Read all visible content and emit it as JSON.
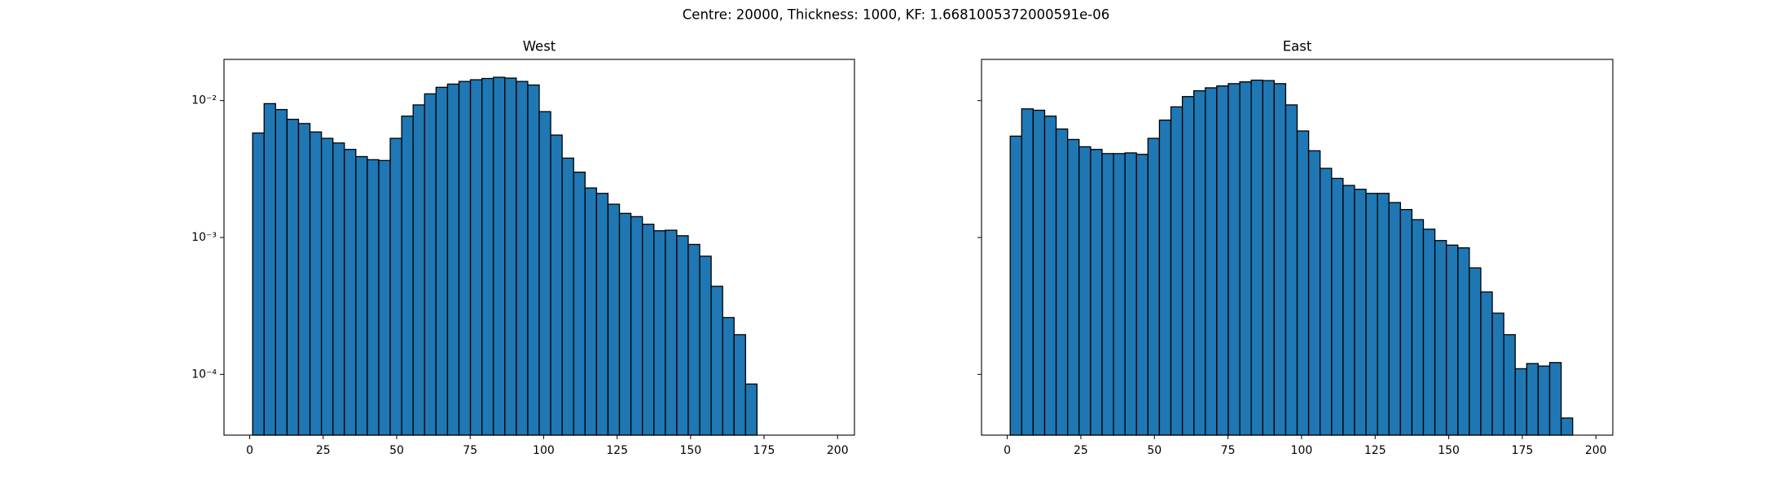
{
  "title": "Centre: 20000, Thickness: 1000, KF: 1.6681005372000591e-06",
  "chart_data": [
    {
      "type": "histogram",
      "title": "West",
      "color": "#1f77b4",
      "edgecolor": "#000000",
      "log_y": true,
      "bins": [
        1,
        4.9,
        8.8,
        12.7,
        16.6,
        20.5,
        24.4,
        28.3,
        32.2,
        36.1,
        40,
        43.9,
        47.8,
        51.7,
        55.6,
        59.5,
        63.4,
        67.3,
        71.2,
        75.1,
        79,
        82.9,
        86.8,
        90.7,
        94.6,
        98.5,
        102.4,
        106.3,
        110.2,
        114.1,
        118,
        121.9,
        125.8,
        129.7,
        133.6,
        137.5,
        141.4,
        145.3,
        149.2,
        153.1,
        157,
        160.9,
        164.8,
        168.7,
        172.6,
        176.5,
        180.4,
        184.3,
        188.2,
        192.1,
        196
      ],
      "counts": [
        0.0058,
        0.0095,
        0.0086,
        0.0073,
        0.0068,
        0.0059,
        0.0053,
        0.0049,
        0.0044,
        0.0039,
        0.0037,
        0.00365,
        0.0053,
        0.0077,
        0.0093,
        0.0112,
        0.0125,
        0.0132,
        0.0138,
        0.0142,
        0.0145,
        0.0148,
        0.0146,
        0.0138,
        0.013,
        0.0083,
        0.0056,
        0.0038,
        0.003,
        0.0023,
        0.0021,
        0.00175,
        0.0015,
        0.00142,
        0.00125,
        0.00112,
        0.00113,
        0.00103,
        0.00089,
        0.00073,
        0.00044,
        0.00026,
        0.000195,
        8.5e-05,
        0,
        0,
        0,
        0,
        0,
        0
      ],
      "xlim": [
        -8.75,
        205.75
      ],
      "xticks": [
        0,
        25,
        50,
        75,
        100,
        125,
        150,
        175,
        200
      ],
      "ylim": [
        3.6e-05,
        0.02
      ],
      "yticks": [
        {
          "value": 0.0001,
          "label": "10⁻⁴"
        },
        {
          "value": 0.001,
          "label": "10⁻³"
        },
        {
          "value": 0.01,
          "label": "10⁻²"
        }
      ]
    },
    {
      "type": "histogram",
      "title": "East",
      "color": "#1f77b4",
      "edgecolor": "#000000",
      "log_y": true,
      "bins": [
        1,
        4.9,
        8.8,
        12.7,
        16.6,
        20.5,
        24.4,
        28.3,
        32.2,
        36.1,
        40,
        43.9,
        47.8,
        51.7,
        55.6,
        59.5,
        63.4,
        67.3,
        71.2,
        75.1,
        79,
        82.9,
        86.8,
        90.7,
        94.6,
        98.5,
        102.4,
        106.3,
        110.2,
        114.1,
        118,
        121.9,
        125.8,
        129.7,
        133.6,
        137.5,
        141.4,
        145.3,
        149.2,
        153.1,
        157,
        160.9,
        164.8,
        168.7,
        172.6,
        176.5,
        180.4,
        184.3,
        188.2,
        192.1,
        196
      ],
      "counts": [
        0.0055,
        0.0087,
        0.0085,
        0.0077,
        0.0062,
        0.0052,
        0.0046,
        0.0044,
        0.0041,
        0.0041,
        0.00415,
        0.00405,
        0.0053,
        0.0072,
        0.009,
        0.0107,
        0.0118,
        0.0124,
        0.0128,
        0.0133,
        0.0137,
        0.0141,
        0.014,
        0.0133,
        0.0093,
        0.006,
        0.0043,
        0.0032,
        0.0027,
        0.0024,
        0.00225,
        0.0021,
        0.0021,
        0.0018,
        0.0016,
        0.00135,
        0.00115,
        0.00095,
        0.00088,
        0.00084,
        0.0006,
        0.0004,
        0.00028,
        0.000195,
        0.00011,
        0.00012,
        0.000115,
        0.000122,
        4.8e-05,
        0
      ],
      "xlim": [
        -8.75,
        205.75
      ],
      "xticks": [
        0,
        25,
        50,
        75,
        100,
        125,
        150,
        175,
        200
      ],
      "ylim": [
        3.6e-05,
        0.02
      ],
      "yticks": [
        0.0001,
        0.001,
        0.01
      ]
    }
  ]
}
